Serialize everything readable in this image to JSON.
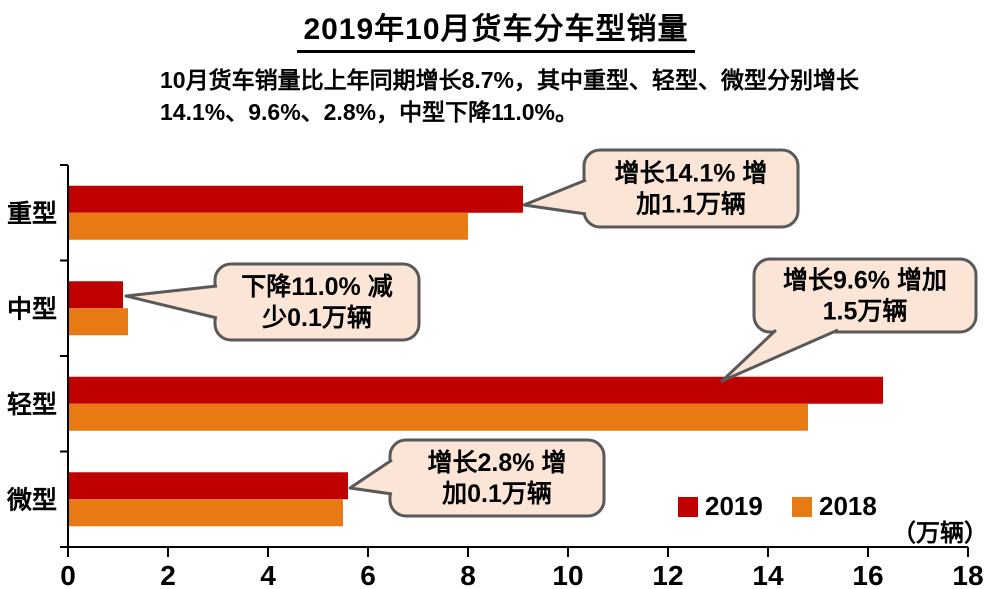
{
  "title": "2019年10月货车分车型销量",
  "subtitle_lines": [
    "10月货车销量比上年同期增长8.7%，其中重型、轻型、微型分别增长",
    "14.1%、9.6%、2.8%，中型下降11.0%。"
  ],
  "chart_data": {
    "type": "bar",
    "orientation": "horizontal",
    "title": "2019年10月货车分车型销量",
    "categories": [
      "重型",
      "中型",
      "轻型",
      "微型"
    ],
    "series": [
      {
        "name": "2019",
        "color": "#C00000",
        "values": [
          9.1,
          1.1,
          16.3,
          5.6
        ]
      },
      {
        "name": "2018",
        "color": "#E87A14",
        "values": [
          8.0,
          1.2,
          14.8,
          5.5
        ]
      }
    ],
    "xlim": [
      0,
      18
    ],
    "xticks": [
      0,
      2,
      4,
      6,
      8,
      10,
      12,
      14,
      16,
      18
    ],
    "unit_label": "（万辆）",
    "grid": false,
    "legend_position": "inside-bottom-right",
    "annotations": [
      {
        "target": "重型",
        "lines": [
          "增长14.1% 增",
          "加1.1万辆"
        ]
      },
      {
        "target": "中型",
        "lines": [
          "下降11.0% 减",
          "少0.1万辆"
        ]
      },
      {
        "target": "轻型",
        "lines": [
          "增长9.6% 增加",
          "1.5万辆"
        ]
      },
      {
        "target": "微型",
        "lines": [
          "增长2.8% 增",
          "加0.1万辆"
        ]
      }
    ],
    "callout_style": {
      "fill": "#FBE5D6",
      "stroke": "#595959"
    },
    "axis_color": "#000000",
    "text_color": "#000000"
  }
}
